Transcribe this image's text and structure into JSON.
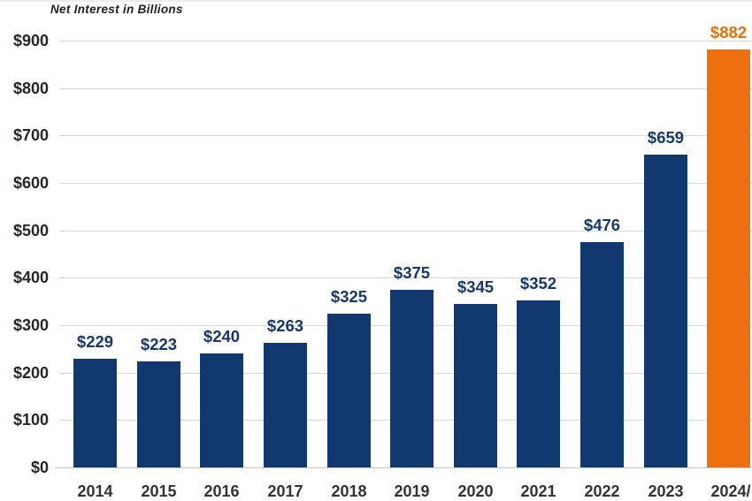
{
  "chart_data": {
    "type": "bar",
    "title": "Net Interest in Billions",
    "categories": [
      "2014",
      "2015",
      "2016",
      "2017",
      "2018",
      "2019",
      "2020",
      "2021",
      "2022",
      "2023",
      "2024"
    ],
    "values": [
      229,
      223,
      240,
      263,
      325,
      375,
      345,
      352,
      476,
      659,
      882
    ],
    "value_labels": [
      "$229",
      "$223",
      "$240",
      "$263",
      "$325",
      "$375",
      "$345",
      "$352",
      "$476",
      "$659",
      "$882"
    ],
    "y_tick_labels": [
      "$0",
      "$100",
      "$200",
      "$300",
      "$400",
      "$500",
      "$600",
      "$700",
      "$800",
      "$900"
    ],
    "ylim": [
      0,
      900
    ],
    "y_tick_step": 100,
    "grid": true,
    "legend": "none",
    "highlight_index": 10,
    "last_category_suffix": "/",
    "colors": {
      "bar": "#11386F",
      "bar_highlight": "#EE6F10",
      "value_label": "#17376E",
      "value_label_highlight": "#E8700D",
      "axis_text": "#333333",
      "y_axis_text": "#262626",
      "gridline": "#D9D9D9",
      "baseline": "#C9C9C9",
      "title": "#1F1F1F",
      "background": "#FFFFFF"
    }
  }
}
